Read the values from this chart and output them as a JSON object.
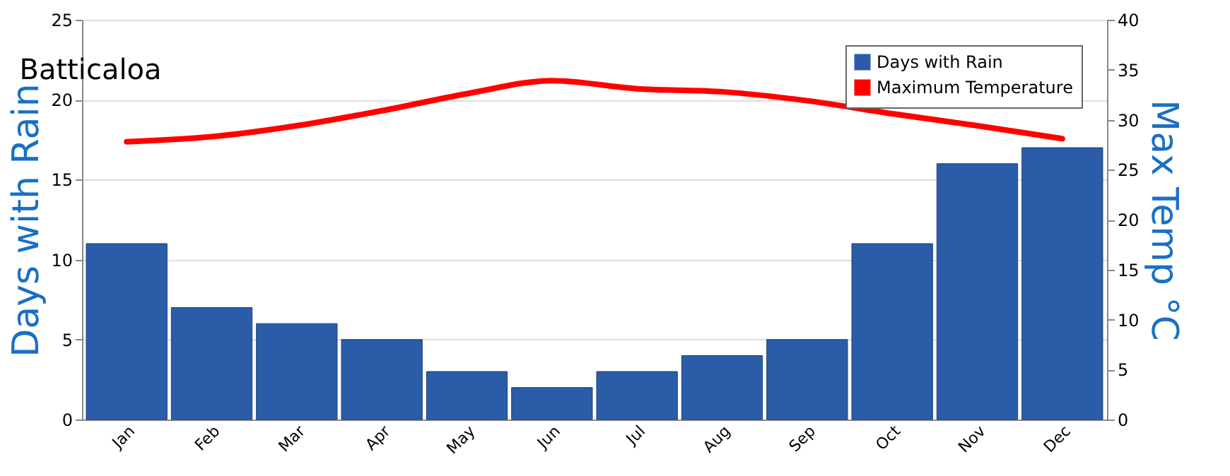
{
  "chart_data": {
    "type": "bar",
    "title": "Batticaloa",
    "ylabel": "Days with Rain",
    "y2label": "Max Temp °C",
    "categories": [
      "Jan",
      "Feb",
      "Mar",
      "Apr",
      "May",
      "Jun",
      "Jul",
      "Aug",
      "Sep",
      "Oct",
      "Nov",
      "Dec"
    ],
    "series": [
      {
        "name": "Days with Rain",
        "color": "#2b5ca8",
        "values": [
          11,
          7,
          6,
          5,
          3,
          2,
          3,
          4,
          5,
          11,
          16,
          17
        ]
      },
      {
        "name": "Maximum Temperature",
        "type": "line",
        "axis": "y2",
        "color": "#ff0000",
        "values": [
          27.8,
          28.3,
          29.4,
          30.9,
          32.6,
          33.9,
          33.1,
          32.8,
          31.9,
          30.6,
          29.4,
          28.1
        ]
      }
    ],
    "ylim": [
      0,
      25
    ],
    "yticks": [
      0,
      5,
      10,
      15,
      20,
      25
    ],
    "y2lim": [
      0,
      40
    ],
    "y2ticks": [
      0,
      5,
      10,
      15,
      20,
      25,
      30,
      35,
      40
    ],
    "grid": "y",
    "legend": "top right"
  }
}
